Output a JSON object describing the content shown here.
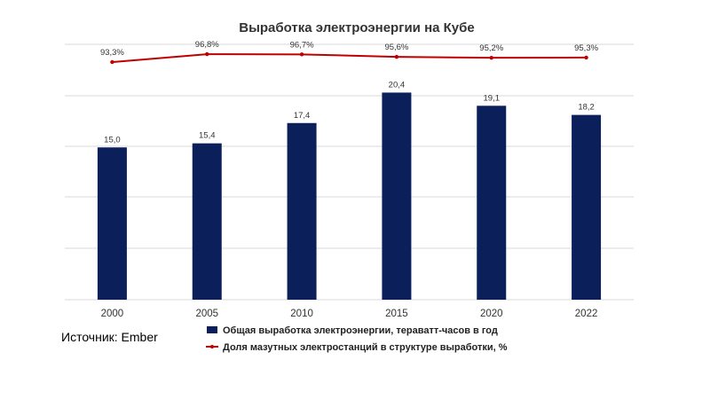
{
  "source": "Источник: Ember",
  "colors": {
    "bars": "#0b1f5b",
    "line": "#c00000",
    "grid": "#d9d9d9"
  },
  "chart_data": {
    "type": "bar",
    "title": "Выработка электроэнергии на Кубе",
    "xlabel": "",
    "ylabel": "",
    "categories": [
      "2000",
      "2005",
      "2010",
      "2015",
      "2020",
      "2022"
    ],
    "legend_position": "bottom",
    "grid": true,
    "series": [
      {
        "name": "Общая выработка электроэнергии, тераватт-часов в год",
        "type": "bar",
        "values": [
          15.0,
          15.4,
          17.4,
          20.4,
          19.1,
          18.2
        ],
        "labels": [
          "15,0",
          "15,4",
          "17,4",
          "20,4",
          "19,1",
          "18,2"
        ],
        "ylim": [
          0,
          25
        ]
      },
      {
        "name": "Доля мазутных электростанций в структуре выработки, %",
        "type": "line",
        "values": [
          93.3,
          96.8,
          96.7,
          95.6,
          95.2,
          95.3
        ],
        "labels": [
          "93,3%",
          "96,8%",
          "96,7%",
          "95,6%",
          "95,2%",
          "95,3%"
        ]
      }
    ]
  }
}
